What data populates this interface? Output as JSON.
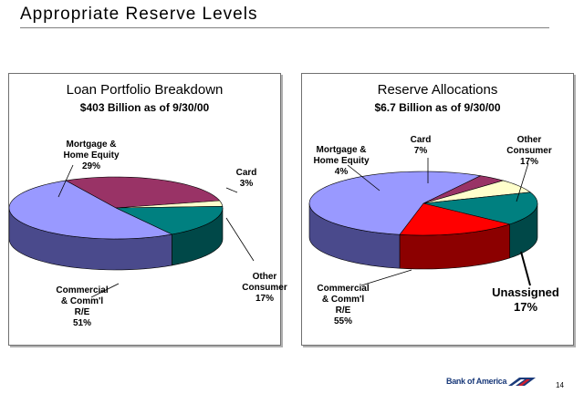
{
  "slide": {
    "title": "Appropriate Reserve Levels",
    "page": "14",
    "logo_text": "Bank of America"
  },
  "chart_data": [
    {
      "type": "pie",
      "title": "Loan Portfolio Breakdown",
      "subtitle": "$403 Billion as of 9/30/00",
      "slices": [
        {
          "lines": [
            "Mortgage &",
            "Home Equity"
          ],
          "pct": "29%",
          "value": 29,
          "color": "#993366",
          "side": "#5a1f3c"
        },
        {
          "lines": [
            "Card"
          ],
          "pct": "3%",
          "value": 3,
          "color": "#ffffcc",
          "side": "#b8b890"
        },
        {
          "lines": [
            "Other",
            "Consumer"
          ],
          "pct": "17%",
          "value": 17,
          "color": "#008080",
          "side": "#004848"
        },
        {
          "lines": [
            "Commercial",
            "& Comm'l",
            "R/E"
          ],
          "pct": "51%",
          "value": 51,
          "color": "#9999ff",
          "side": "#4a4a8c"
        }
      ]
    },
    {
      "type": "pie",
      "title": "Reserve Allocations",
      "subtitle": "$6.7 Billion as of 9/30/00",
      "slices": [
        {
          "lines": [
            "Mortgage &",
            "Home Equity"
          ],
          "pct": "4%",
          "value": 4,
          "color": "#993366",
          "side": "#5a1f3c"
        },
        {
          "lines": [
            "Card"
          ],
          "pct": "7%",
          "value": 7,
          "color": "#ffffcc",
          "side": "#b8b890"
        },
        {
          "lines": [
            "Other",
            "Consumer"
          ],
          "pct": "17%",
          "value": 17,
          "color": "#008080",
          "side": "#004848"
        },
        {
          "lines": [
            "Unassigned"
          ],
          "pct": "17%",
          "value": 17,
          "color": "#ff0000",
          "side": "#8c0000"
        },
        {
          "lines": [
            "Commercial",
            "& Comm'l",
            "R/E"
          ],
          "pct": "55%",
          "value": 55,
          "color": "#9999ff",
          "side": "#4a4a8c"
        }
      ]
    }
  ]
}
